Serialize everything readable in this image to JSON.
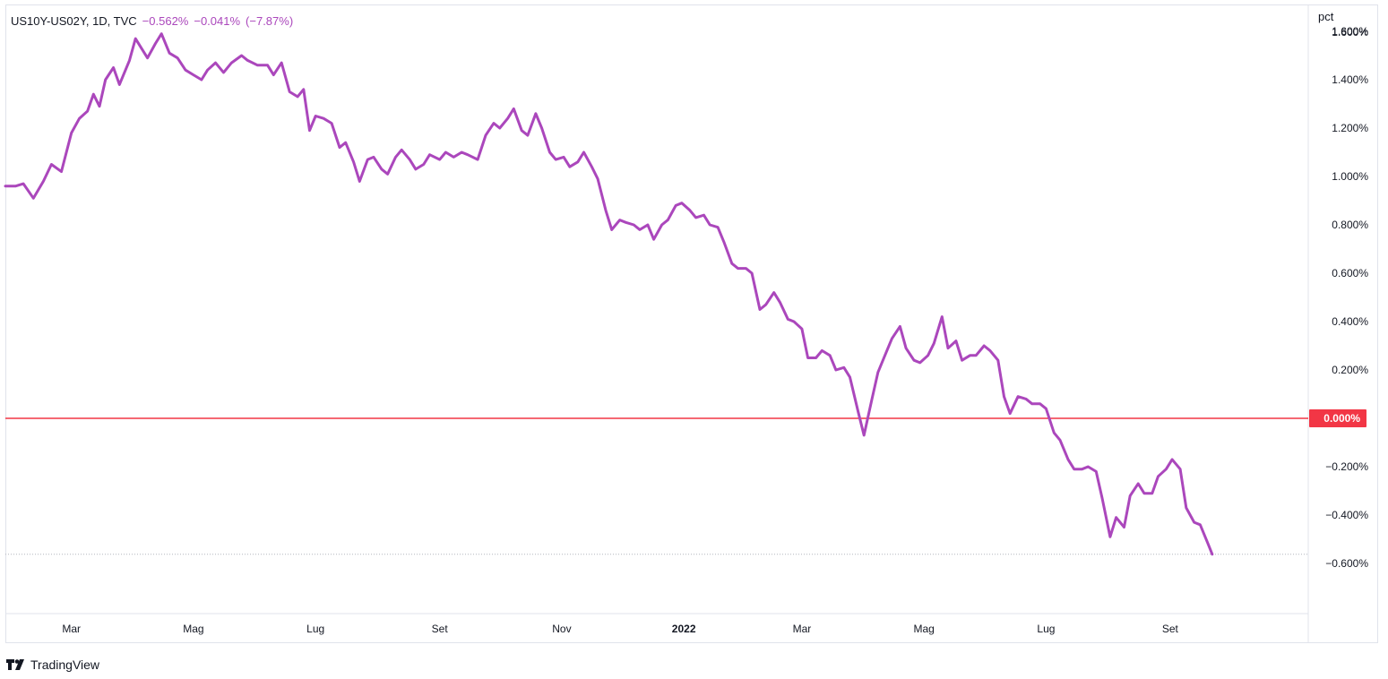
{
  "legend": {
    "symbol": "US10Y-US02Y, 1D, TVC",
    "close": "−0.562%",
    "change": "−0.041%",
    "change_pct": "(−7.87%)"
  },
  "unit_label": "pct",
  "footer": {
    "brand": "TradingView",
    "logo_icon": "tradingview-logo-icon"
  },
  "colors": {
    "series": "#ab47bc",
    "zero_line": "#f23645",
    "zero_badge": "#f23645",
    "axis": "#131722"
  },
  "chart_data": {
    "type": "line",
    "x_unit": "date",
    "y_unit": "percent",
    "ylim": [
      -0.8,
      1.6
    ],
    "xlim": [
      "2021-01-27",
      "2022-11-09"
    ],
    "grid": false,
    "y_ticks": [
      1.6,
      1.4,
      1.2,
      1.0,
      0.8,
      0.6,
      0.4,
      0.2,
      0.0,
      -0.2,
      -0.4,
      -0.6
    ],
    "y_tick_labels": [
      "1.600%",
      "1.400%",
      "1.200%",
      "1.000%",
      "0.800%",
      "0.600%",
      "0.400%",
      "0.200%",
      "0.000%",
      "−0.200%",
      "−0.400%",
      "−0.600%"
    ],
    "x_ticks": [
      {
        "date": "2021-03-01",
        "label": "Mar",
        "bold": false
      },
      {
        "date": "2021-05-01",
        "label": "Mag",
        "bold": false
      },
      {
        "date": "2021-07-01",
        "label": "Lug",
        "bold": false
      },
      {
        "date": "2021-09-01",
        "label": "Set",
        "bold": false
      },
      {
        "date": "2021-11-01",
        "label": "Nov",
        "bold": false
      },
      {
        "date": "2022-01-01",
        "label": "2022",
        "bold": true
      },
      {
        "date": "2022-03-01",
        "label": "Mar",
        "bold": false
      },
      {
        "date": "2022-05-01",
        "label": "Mag",
        "bold": false
      },
      {
        "date": "2022-07-01",
        "label": "Lug",
        "bold": false
      },
      {
        "date": "2022-09-01",
        "label": "Set",
        "bold": false
      }
    ],
    "horizontal_line": {
      "value": 0.0,
      "label": "0.000%"
    },
    "last_value": -0.562,
    "series": [
      {
        "points": [
          [
            "2021-01-27",
            0.96
          ],
          [
            "2021-02-01",
            0.96
          ],
          [
            "2021-02-05",
            0.97
          ],
          [
            "2021-02-10",
            0.91
          ],
          [
            "2021-02-15",
            0.98
          ],
          [
            "2021-02-19",
            1.05
          ],
          [
            "2021-02-24",
            1.02
          ],
          [
            "2021-03-01",
            1.18
          ],
          [
            "2021-03-05",
            1.24
          ],
          [
            "2021-03-09",
            1.27
          ],
          [
            "2021-03-12",
            1.34
          ],
          [
            "2021-03-15",
            1.29
          ],
          [
            "2021-03-18",
            1.4
          ],
          [
            "2021-03-22",
            1.45
          ],
          [
            "2021-03-25",
            1.38
          ],
          [
            "2021-03-30",
            1.48
          ],
          [
            "2021-04-02",
            1.57
          ],
          [
            "2021-04-05",
            1.53
          ],
          [
            "2021-04-08",
            1.49
          ],
          [
            "2021-04-12",
            1.55
          ],
          [
            "2021-04-15",
            1.59
          ],
          [
            "2021-04-19",
            1.51
          ],
          [
            "2021-04-23",
            1.49
          ],
          [
            "2021-04-27",
            1.44
          ],
          [
            "2021-05-01",
            1.42
          ],
          [
            "2021-05-05",
            1.4
          ],
          [
            "2021-05-08",
            1.44
          ],
          [
            "2021-05-12",
            1.47
          ],
          [
            "2021-05-16",
            1.43
          ],
          [
            "2021-05-20",
            1.47
          ],
          [
            "2021-05-25",
            1.5
          ],
          [
            "2021-05-28",
            1.48
          ],
          [
            "2021-06-02",
            1.46
          ],
          [
            "2021-06-07",
            1.46
          ],
          [
            "2021-06-10",
            1.42
          ],
          [
            "2021-06-14",
            1.47
          ],
          [
            "2021-06-18",
            1.35
          ],
          [
            "2021-06-22",
            1.33
          ],
          [
            "2021-06-25",
            1.36
          ],
          [
            "2021-06-28",
            1.19
          ],
          [
            "2021-07-01",
            1.25
          ],
          [
            "2021-07-05",
            1.24
          ],
          [
            "2021-07-09",
            1.22
          ],
          [
            "2021-07-13",
            1.12
          ],
          [
            "2021-07-16",
            1.14
          ],
          [
            "2021-07-20",
            1.06
          ],
          [
            "2021-07-23",
            0.98
          ],
          [
            "2021-07-27",
            1.07
          ],
          [
            "2021-07-30",
            1.08
          ],
          [
            "2021-08-03",
            1.03
          ],
          [
            "2021-08-06",
            1.01
          ],
          [
            "2021-08-10",
            1.08
          ],
          [
            "2021-08-13",
            1.11
          ],
          [
            "2021-08-17",
            1.07
          ],
          [
            "2021-08-20",
            1.03
          ],
          [
            "2021-08-24",
            1.05
          ],
          [
            "2021-08-27",
            1.09
          ],
          [
            "2021-09-01",
            1.07
          ],
          [
            "2021-09-04",
            1.1
          ],
          [
            "2021-09-08",
            1.08
          ],
          [
            "2021-09-12",
            1.1
          ],
          [
            "2021-09-15",
            1.09
          ],
          [
            "2021-09-20",
            1.07
          ],
          [
            "2021-09-24",
            1.17
          ],
          [
            "2021-09-28",
            1.22
          ],
          [
            "2021-10-01",
            1.2
          ],
          [
            "2021-10-05",
            1.24
          ],
          [
            "2021-10-08",
            1.28
          ],
          [
            "2021-10-12",
            1.19
          ],
          [
            "2021-10-15",
            1.17
          ],
          [
            "2021-10-19",
            1.26
          ],
          [
            "2021-10-22",
            1.2
          ],
          [
            "2021-10-26",
            1.1
          ],
          [
            "2021-10-29",
            1.07
          ],
          [
            "2021-11-02",
            1.08
          ],
          [
            "2021-11-05",
            1.04
          ],
          [
            "2021-11-09",
            1.06
          ],
          [
            "2021-11-12",
            1.1
          ],
          [
            "2021-11-16",
            1.04
          ],
          [
            "2021-11-19",
            0.99
          ],
          [
            "2021-11-23",
            0.86
          ],
          [
            "2021-11-26",
            0.78
          ],
          [
            "2021-11-30",
            0.82
          ],
          [
            "2021-12-03",
            0.81
          ],
          [
            "2021-12-07",
            0.8
          ],
          [
            "2021-12-10",
            0.78
          ],
          [
            "2021-12-14",
            0.8
          ],
          [
            "2021-12-17",
            0.74
          ],
          [
            "2021-12-21",
            0.8
          ],
          [
            "2021-12-24",
            0.82
          ],
          [
            "2021-12-28",
            0.88
          ],
          [
            "2021-12-31",
            0.89
          ],
          [
            "2022-01-04",
            0.86
          ],
          [
            "2022-01-07",
            0.83
          ],
          [
            "2022-01-11",
            0.84
          ],
          [
            "2022-01-14",
            0.8
          ],
          [
            "2022-01-18",
            0.79
          ],
          [
            "2022-01-21",
            0.73
          ],
          [
            "2022-01-25",
            0.64
          ],
          [
            "2022-01-28",
            0.62
          ],
          [
            "2022-02-01",
            0.62
          ],
          [
            "2022-02-04",
            0.6
          ],
          [
            "2022-02-08",
            0.45
          ],
          [
            "2022-02-11",
            0.47
          ],
          [
            "2022-02-15",
            0.52
          ],
          [
            "2022-02-18",
            0.48
          ],
          [
            "2022-02-22",
            0.41
          ],
          [
            "2022-02-25",
            0.4
          ],
          [
            "2022-03-01",
            0.37
          ],
          [
            "2022-03-04",
            0.25
          ],
          [
            "2022-03-08",
            0.25
          ],
          [
            "2022-03-11",
            0.28
          ],
          [
            "2022-03-15",
            0.26
          ],
          [
            "2022-03-18",
            0.2
          ],
          [
            "2022-03-22",
            0.21
          ],
          [
            "2022-03-25",
            0.17
          ],
          [
            "2022-03-29",
            0.03
          ],
          [
            "2022-04-01",
            -0.07
          ],
          [
            "2022-04-05",
            0.08
          ],
          [
            "2022-04-08",
            0.19
          ],
          [
            "2022-04-12",
            0.27
          ],
          [
            "2022-04-15",
            0.33
          ],
          [
            "2022-04-19",
            0.38
          ],
          [
            "2022-04-22",
            0.29
          ],
          [
            "2022-04-26",
            0.24
          ],
          [
            "2022-04-29",
            0.23
          ],
          [
            "2022-05-03",
            0.26
          ],
          [
            "2022-05-06",
            0.31
          ],
          [
            "2022-05-10",
            0.42
          ],
          [
            "2022-05-13",
            0.29
          ],
          [
            "2022-05-17",
            0.32
          ],
          [
            "2022-05-20",
            0.24
          ],
          [
            "2022-05-24",
            0.26
          ],
          [
            "2022-05-27",
            0.26
          ],
          [
            "2022-05-31",
            0.3
          ],
          [
            "2022-06-03",
            0.28
          ],
          [
            "2022-06-07",
            0.24
          ],
          [
            "2022-06-10",
            0.09
          ],
          [
            "2022-06-13",
            0.02
          ],
          [
            "2022-06-17",
            0.09
          ],
          [
            "2022-06-21",
            0.08
          ],
          [
            "2022-06-24",
            0.06
          ],
          [
            "2022-06-28",
            0.06
          ],
          [
            "2022-07-01",
            0.04
          ],
          [
            "2022-07-05",
            -0.06
          ],
          [
            "2022-07-08",
            -0.09
          ],
          [
            "2022-07-12",
            -0.17
          ],
          [
            "2022-07-15",
            -0.21
          ],
          [
            "2022-07-19",
            -0.21
          ],
          [
            "2022-07-22",
            -0.2
          ],
          [
            "2022-07-26",
            -0.22
          ],
          [
            "2022-07-29",
            -0.33
          ],
          [
            "2022-08-02",
            -0.49
          ],
          [
            "2022-08-05",
            -0.41
          ],
          [
            "2022-08-09",
            -0.45
          ],
          [
            "2022-08-12",
            -0.32
          ],
          [
            "2022-08-16",
            -0.27
          ],
          [
            "2022-08-19",
            -0.31
          ],
          [
            "2022-08-23",
            -0.31
          ],
          [
            "2022-08-26",
            -0.24
          ],
          [
            "2022-08-30",
            -0.21
          ],
          [
            "2022-09-02",
            -0.17
          ],
          [
            "2022-09-06",
            -0.21
          ],
          [
            "2022-09-09",
            -0.37
          ],
          [
            "2022-09-13",
            -0.43
          ],
          [
            "2022-09-16",
            -0.44
          ],
          [
            "2022-09-20",
            -0.52
          ],
          [
            "2022-09-22",
            -0.562
          ]
        ]
      }
    ]
  }
}
